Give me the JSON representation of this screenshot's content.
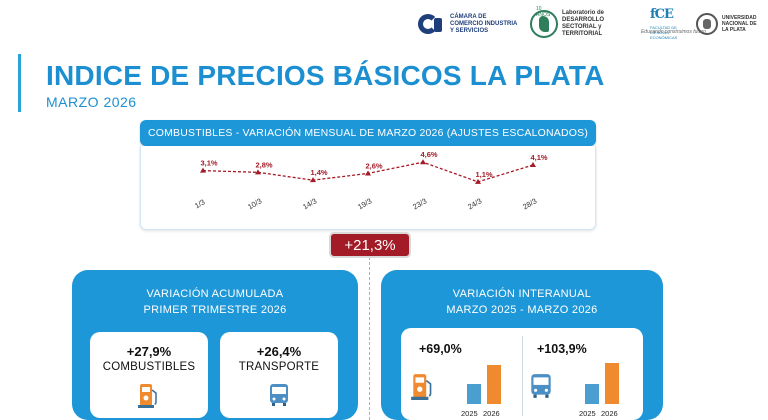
{
  "logos": {
    "camara": "CÁMARA DE COMERCIO INDUSTRIA Y SERVICIOS",
    "lab_years": "10 AÑOS",
    "lab": "Laboratorio de DESARROLLO SECTORIAL y TERRITORIAL",
    "fce_small": "FACULTAD DE CIENCIAS ECONÓMICAS",
    "unlp": "UNIVERSIDAD NACIONAL DE LA PLATA",
    "tagline": "Educando construimos futuro"
  },
  "header": {
    "title": "INDICE DE PRECIOS BÁSICOS LA PLATA",
    "subtitle": "MARZO 2026"
  },
  "chart_data": {
    "type": "line",
    "title": "COMBUSTIBLES - VARIACIÓN MENSUAL DE MARZO 2026 (AJUSTES ESCALONADOS)",
    "categories": [
      "1/3",
      "10/3",
      "14/3",
      "19/3",
      "23/3",
      "24/3",
      "28/3"
    ],
    "series": [
      {
        "values": [
          3.1,
          2.8,
          1.4,
          2.6,
          4.6,
          1.1,
          4.1
        ],
        "labels": [
          "3,1%",
          "2,8%",
          "1,4%",
          "2,6%",
          "4,6%",
          "1,1%",
          "4,1%"
        ],
        "color": "#a31b26"
      }
    ],
    "ylim": [
      0,
      5
    ],
    "grid": false,
    "line_style": "dashed"
  },
  "total": {
    "label": "+21,3%"
  },
  "accumulated": {
    "title_line1": "VARIACIÓN ACUMULADA",
    "title_line2": "PRIMER TRIMESTRE 2026",
    "items": [
      {
        "value": "+27,9%",
        "label": "COMBUSTIBLES",
        "icon": "fuel-pump-icon"
      },
      {
        "value": "+26,4%",
        "label": "TRANSPORTE",
        "icon": "bus-icon"
      }
    ]
  },
  "interannual": {
    "title_line1": "VARIACIÓN INTERANUAL",
    "title_line2": "MARZO 2025 - MARZO 2026",
    "items": [
      {
        "value": "+69,0%",
        "icon": "fuel-pump-icon",
        "bar_2025": 0.48,
        "bar_2026": 0.92
      },
      {
        "value": "+103,9%",
        "icon": "bus-icon",
        "bar_2025": 0.48,
        "bar_2026": 0.98
      }
    ],
    "year_a": "2025",
    "year_b": "2026"
  },
  "colors": {
    "accent": "#1e97d8",
    "title": "#1b8fd2",
    "highlight": "#a31b26",
    "bar_2025": "#4b9fd0",
    "bar_2026": "#ef8a2f"
  }
}
